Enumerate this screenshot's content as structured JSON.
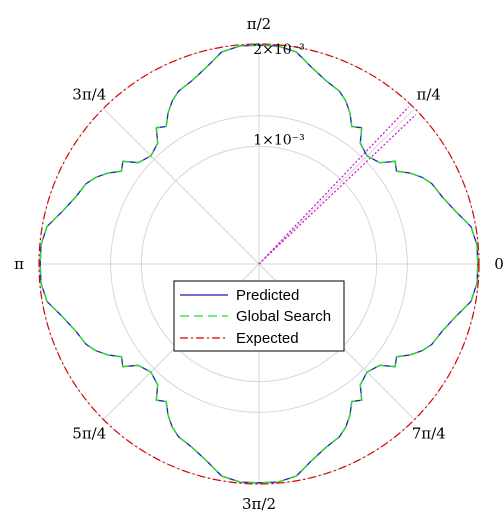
{
  "chart_data": {
    "type": "polar-line",
    "angle_labels": [
      "0",
      "π/4",
      "π/2",
      "3π/4",
      "π",
      "5π/4",
      "3π/2",
      "7π/4"
    ],
    "angle_ticks_rad": [
      0,
      0.7854,
      1.5708,
      2.3562,
      3.1416,
      3.927,
      4.7124,
      5.4978
    ],
    "radial_ticks": [
      0.001,
      0.002
    ],
    "radial_tick_labels": [
      "1×10⁻³",
      "2×10⁻³"
    ],
    "rlim": [
      0,
      0.00187
    ],
    "grid": true,
    "legend_position": "center-bottom",
    "series": [
      {
        "name": "Predicted",
        "color": "#1f1fb4",
        "style": "solid",
        "theta_deg": [
          0,
          5,
          10,
          15,
          20,
          25,
          28,
          31,
          34,
          37,
          40,
          45,
          50,
          53,
          56,
          59,
          62,
          65,
          70,
          75,
          80,
          85,
          90
        ],
        "r": [
          0.00186,
          0.00186,
          0.00183,
          0.00173,
          0.00166,
          0.00162,
          0.00157,
          0.0015,
          0.00141,
          0.00145,
          0.00134,
          0.0013,
          0.00134,
          0.00145,
          0.00141,
          0.0015,
          0.00157,
          0.00162,
          0.00166,
          0.00173,
          0.00183,
          0.00186,
          0.00186
        ]
      },
      {
        "name": "Global Search",
        "color": "#22dd22",
        "style": "dashed",
        "theta_deg": [
          0,
          5,
          10,
          15,
          20,
          25,
          28,
          31,
          34,
          37,
          40,
          45,
          50,
          53,
          56,
          59,
          62,
          65,
          70,
          75,
          80,
          85,
          90
        ],
        "r": [
          0.00186,
          0.00186,
          0.00183,
          0.00173,
          0.00166,
          0.00162,
          0.00157,
          0.0015,
          0.00141,
          0.00145,
          0.00134,
          0.0013,
          0.00134,
          0.00145,
          0.00141,
          0.0015,
          0.00157,
          0.00162,
          0.00166,
          0.00173,
          0.00183,
          0.00186,
          0.00186
        ]
      },
      {
        "name": "Expected",
        "color": "#dd0000",
        "style": "dashdot",
        "theta_deg": [
          0,
          90
        ],
        "r": [
          0.00187,
          0.00187
        ]
      }
    ],
    "direction_lines": {
      "color": "#dd00dd",
      "theta_deg": [
        43.6,
        46.4
      ]
    }
  }
}
